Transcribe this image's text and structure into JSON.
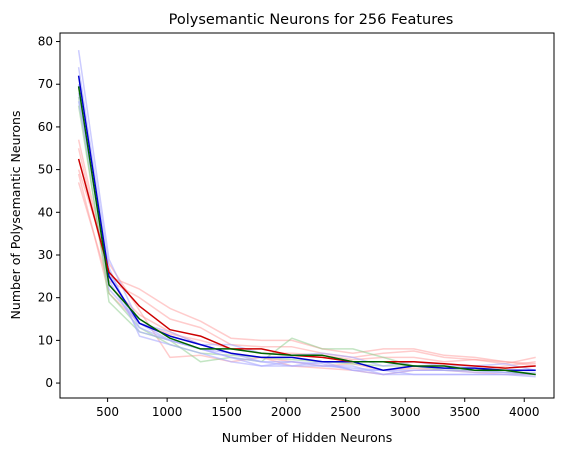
{
  "chart_data": {
    "type": "line",
    "title": "Polysemantic Neurons for 256 Features",
    "xlabel": "Number of Hidden Neurons",
    "ylabel": "Number of Polysemantic Neurons",
    "xlim": [
      100,
      4250
    ],
    "ylim": [
      -3.5,
      82
    ],
    "xticks": [
      500,
      1000,
      1500,
      2000,
      2500,
      3000,
      3500,
      4000
    ],
    "yticks": [
      0,
      10,
      20,
      30,
      40,
      50,
      60,
      70,
      80
    ],
    "grid": false,
    "legend": "none",
    "x": [
      256,
      512,
      768,
      1024,
      1280,
      1536,
      1792,
      2048,
      2304,
      2560,
      2816,
      3072,
      3328,
      3584,
      3840,
      4096
    ],
    "series": [
      {
        "color": "#0000cc",
        "alpha": 1.0,
        "values": [
          72,
          25,
          14,
          11,
          9,
          7,
          6,
          6,
          5,
          5,
          3,
          4,
          3.5,
          3.5,
          3,
          3
        ]
      },
      {
        "color": "#cc0000",
        "alpha": 1.0,
        "values": [
          52.5,
          26,
          18,
          12.5,
          11,
          8,
          8,
          6.5,
          6,
          5,
          5,
          5,
          4.5,
          4,
          3.5,
          4
        ]
      },
      {
        "color": "#006400",
        "alpha": 1.0,
        "values": [
          69.5,
          23,
          15,
          10.5,
          8,
          8,
          7,
          6.5,
          6.5,
          5,
          5,
          4,
          4,
          3,
          3,
          2
        ]
      },
      {
        "color": "#aaaaff",
        "alpha": 0.6,
        "values": [
          78,
          29,
          14,
          10,
          8,
          7,
          5,
          4,
          5,
          3,
          3,
          2,
          2,
          2,
          2,
          1.5
        ]
      },
      {
        "color": "#aaaaff",
        "alpha": 0.6,
        "values": [
          74,
          27,
          11,
          9,
          7,
          5,
          4,
          4,
          4,
          4,
          2,
          3,
          3,
          3,
          2.5,
          2
        ]
      },
      {
        "color": "#aaaaff",
        "alpha": 0.6,
        "values": [
          68,
          24,
          12,
          10,
          8,
          6,
          4,
          5,
          4.5,
          3,
          2,
          2,
          2,
          2,
          2,
          2
        ]
      },
      {
        "color": "#aaaaff",
        "alpha": 0.6,
        "values": [
          70,
          22,
          14,
          12,
          9,
          9,
          7,
          6.5,
          7,
          6,
          4,
          5,
          4,
          4,
          4.5,
          3
        ]
      },
      {
        "color": "#aaaaff",
        "alpha": 0.6,
        "values": [
          66,
          26,
          13,
          10,
          8,
          6,
          5,
          5,
          4,
          3.5,
          3,
          3,
          3,
          2.5,
          2.5,
          2.5
        ]
      },
      {
        "color": "#ff9999",
        "alpha": 0.5,
        "values": [
          57,
          25,
          22,
          17.5,
          14.5,
          10.5,
          10,
          10,
          8,
          7,
          8,
          8,
          6.5,
          6,
          5,
          4
        ]
      },
      {
        "color": "#ff9999",
        "alpha": 0.5,
        "values": [
          55,
          24,
          20,
          15,
          13,
          9,
          8.5,
          8.5,
          7,
          6,
          7,
          7.5,
          6,
          5.5,
          4.5,
          6
        ]
      },
      {
        "color": "#ff9999",
        "alpha": 0.5,
        "values": [
          50,
          28,
          17,
          6,
          6.5,
          5,
          6,
          5,
          4,
          4.5,
          3,
          3.5,
          3,
          3,
          4,
          5
        ]
      },
      {
        "color": "#ff9999",
        "alpha": 0.5,
        "values": [
          47,
          23,
          16,
          12,
          9,
          7,
          6,
          4,
          3.5,
          3,
          2,
          3,
          3,
          2.5,
          2,
          2
        ]
      },
      {
        "color": "#ff9999",
        "alpha": 0.5,
        "values": [
          49,
          21,
          14,
          11.5,
          10,
          8,
          7,
          7,
          6.5,
          5.5,
          6,
          6,
          5,
          5.5,
          5,
          4.5
        ]
      },
      {
        "color": "#88cc88",
        "alpha": 0.5,
        "values": [
          67,
          19,
          12,
          10,
          5,
          6,
          5,
          10.5,
          8,
          8,
          6,
          4,
          3,
          3,
          2.5,
          2
        ]
      },
      {
        "color": "#88cc88",
        "alpha": 0.5,
        "values": [
          65,
          21,
          13,
          9,
          7,
          6.5,
          6,
          5.5,
          5,
          4.5,
          4,
          4,
          3.5,
          3,
          3,
          3
        ]
      }
    ]
  }
}
